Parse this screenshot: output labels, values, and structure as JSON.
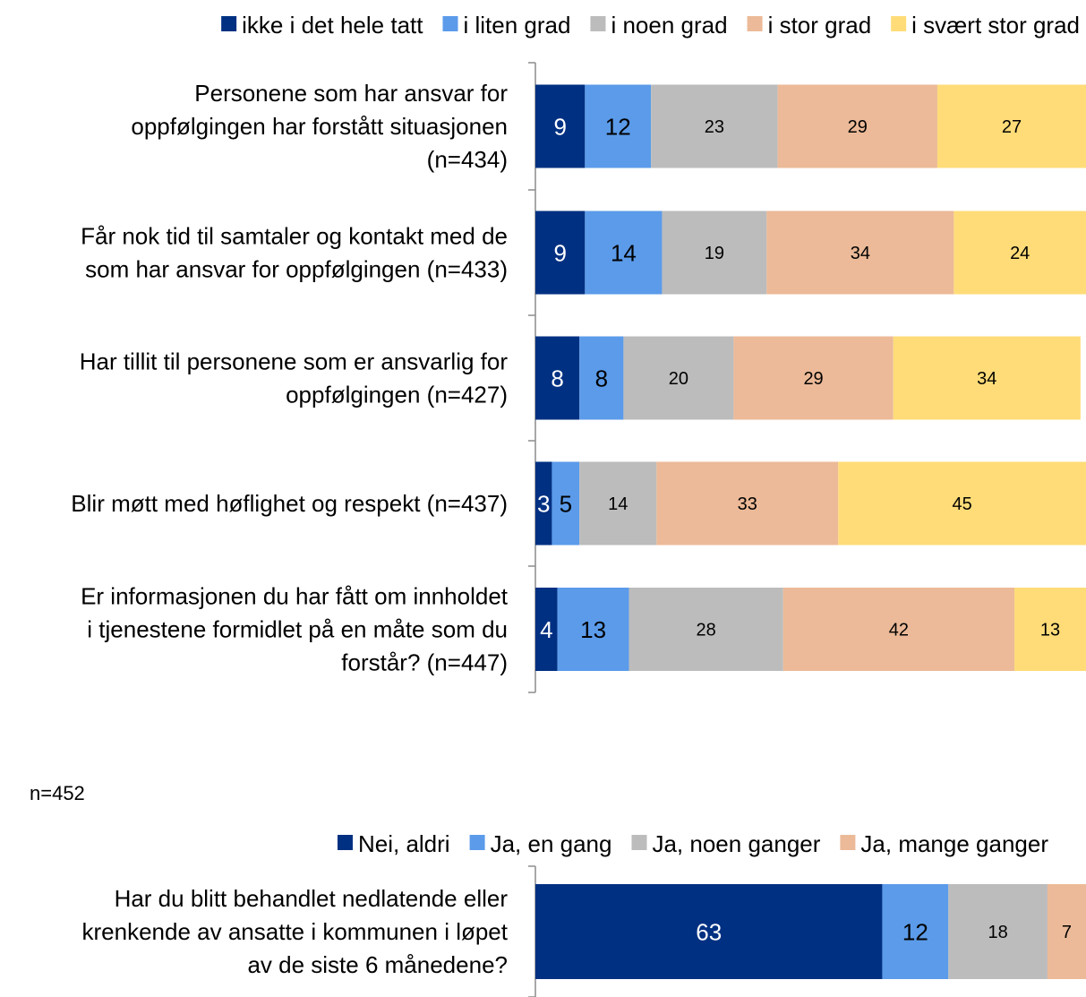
{
  "note": "n=452",
  "chart_data": [
    {
      "type": "bar",
      "orientation": "horizontal",
      "stacked": true,
      "title": "",
      "xlabel": "",
      "ylabel": "",
      "xlim": [
        0,
        100
      ],
      "legend_position": "top",
      "grid": false,
      "categories": [
        [
          "Personene som har ansvar for",
          "oppfølgingen har forstått situasjonen",
          "(n=434)"
        ],
        [
          "Får nok tid til samtaler og kontakt med de",
          "som har ansvar for oppfølgingen (n=433)"
        ],
        [
          "Har tillit til personene som er ansvarlig for",
          "oppfølgingen (n=427)"
        ],
        [
          "Blir møtt med høflighet og respekt (n=437)"
        ],
        [
          "Er informasjonen du har fått om innholdet",
          "i tjenestene formidlet på en måte som du",
          "forstår? (n=447)"
        ]
      ],
      "series": [
        {
          "name": "ikke i det hele tatt",
          "color": "#003082",
          "label_color": "#ffffff",
          "values": [
            9,
            9,
            8,
            3,
            4
          ]
        },
        {
          "name": "i liten grad",
          "color": "#5b9bea",
          "label_color": "#000000",
          "values": [
            12,
            14,
            8,
            5,
            13
          ]
        },
        {
          "name": "i noen grad",
          "color": "#bcbcbc",
          "label_color": "#000000",
          "values": [
            23,
            19,
            20,
            14,
            28
          ]
        },
        {
          "name": "i stor grad",
          "color": "#ecba98",
          "label_color": "#000000",
          "values": [
            29,
            34,
            29,
            33,
            42
          ]
        },
        {
          "name": "i svært stor grad",
          "color": "#ffdc78",
          "label_color": "#000000",
          "values": [
            27,
            24,
            34,
            45,
            13
          ]
        }
      ]
    },
    {
      "type": "bar",
      "orientation": "horizontal",
      "stacked": true,
      "title": "",
      "xlabel": "",
      "ylabel": "",
      "xlim": [
        0,
        100
      ],
      "legend_position": "top",
      "grid": false,
      "categories": [
        [
          "Har du blitt behandlet nedlatende eller",
          "krenkende av ansatte i kommunen i løpet",
          "av de siste 6 månedene?"
        ]
      ],
      "series": [
        {
          "name": "Nei, aldri",
          "color": "#003082",
          "label_color": "#ffffff",
          "values": [
            63
          ]
        },
        {
          "name": "Ja, en gang",
          "color": "#5b9bea",
          "label_color": "#000000",
          "values": [
            12
          ]
        },
        {
          "name": "Ja, noen ganger",
          "color": "#bcbcbc",
          "label_color": "#000000",
          "values": [
            18
          ]
        },
        {
          "name": "Ja, mange ganger",
          "color": "#ecba98",
          "label_color": "#000000",
          "values": [
            7
          ]
        }
      ]
    }
  ]
}
